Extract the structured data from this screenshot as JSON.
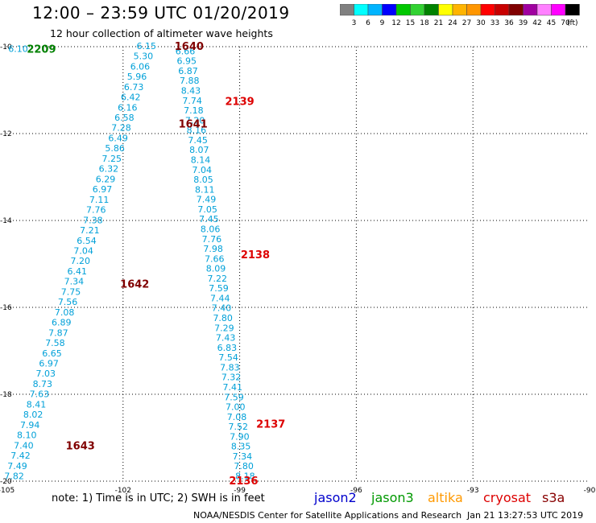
{
  "header": {
    "title": "12:00 – 23:59 UTC 01/20/2019",
    "subtitle": "12 hour collection of altimeter wave heights"
  },
  "colorbar": {
    "labels": [
      "3",
      "6",
      "9",
      "12",
      "15",
      "18",
      "21",
      "24",
      "27",
      "30",
      "33",
      "36",
      "39",
      "42",
      "45",
      "70"
    ],
    "colors": [
      "#808080",
      "#00ffff",
      "#00b4ff",
      "#0000ff",
      "#00c800",
      "#32d232",
      "#008200",
      "#ffff00",
      "#ffb400",
      "#ff9600",
      "#ff0000",
      "#c80000",
      "#800000",
      "#a000a0",
      "#ff80ff",
      "#ff00ff",
      "#000000"
    ],
    "unit": "(ft)"
  },
  "footer": {
    "note": "note:  1) Time is in UTC; 2) SWH is in feet",
    "credit": "NOAA/NESDIS Center for Satellite Applications and Research",
    "timestamp": "Jan 21 13:27:53 UTC 2019"
  },
  "satellites": [
    {
      "name": "jason2",
      "color": "#0000cc"
    },
    {
      "name": "jason3",
      "color": "#009900"
    },
    {
      "name": "altika",
      "color": "#ff9900"
    },
    {
      "name": "cryosat",
      "color": "#dd0000"
    },
    {
      "name": "s3a",
      "color": "#880000"
    }
  ],
  "chart_data": {
    "type": "scatter",
    "x_axis": {
      "range": [
        -105,
        -90
      ],
      "ticks": [
        "-105",
        "-102",
        "-99",
        "-96",
        "-93",
        "-90"
      ]
    },
    "y_axis": {
      "range": [
        -20,
        -10
      ],
      "ticks": [
        "-10",
        "-12",
        "-14",
        "-16",
        "-18",
        "-20"
      ]
    },
    "grid": true,
    "value_color": "#00a0d8",
    "tracks": [
      {
        "start": [
          -101.4,
          -9.98
        ],
        "end": [
          -104.8,
          -19.88
        ],
        "values": [
          "6.15",
          "5.30",
          "6.06",
          "5.96",
          "6.73",
          "6.42",
          "6.16",
          "6.58",
          "7.28",
          "6.49",
          "5.86",
          "7.25",
          "6.32",
          "6.29",
          "6.97",
          "7.11",
          "7.76",
          "7.38",
          "7.21",
          "6.54",
          "7.04",
          "7.20",
          "6.41",
          "7.34",
          "7.75",
          "7.56",
          "7.08",
          "6.89",
          "7.87",
          "7.58",
          "6.65",
          "6.97",
          "7.03",
          "8.73",
          "7.63",
          "8.41",
          "8.02",
          "7.94",
          "8.10",
          "7.40",
          "7.42",
          "7.49",
          "7.82"
        ]
      },
      {
        "start": [
          -100.4,
          -10.1
        ],
        "end": [
          -98.86,
          -19.88
        ],
        "values": [
          "6.66",
          "6.95",
          "6.87",
          "7.88",
          "8.43",
          "7.74",
          "7.18",
          "7.20",
          "8.16",
          "7.45",
          "8.07",
          "8.14",
          "7.04",
          "8.05",
          "8.11",
          "7.49",
          "7.05",
          "7.45",
          "8.06",
          "7.76",
          "7.98",
          "7.66",
          "8.09",
          "7.22",
          "7.59",
          "7.44",
          "7.40",
          "7.80",
          "7.29",
          "7.43",
          "6.83",
          "7.54",
          "7.83",
          "7.32",
          "7.41",
          "7.59",
          "7.00",
          "7.08",
          "7.52",
          "7.90",
          "8.35",
          "7.34",
          "7.80",
          "8.18"
        ]
      },
      {
        "start": [
          -104.7,
          -10.05
        ],
        "end": [
          -104.7,
          -10.05
        ],
        "values": [
          "6.10"
        ]
      }
    ],
    "pass_labels": [
      {
        "text": "2209",
        "lon": -104.1,
        "lat": -10.05,
        "color": "#008000"
      },
      {
        "text": "1640",
        "lon": -100.3,
        "lat": -9.98,
        "color": "#800000"
      },
      {
        "text": "2139",
        "lon": -99.0,
        "lat": -11.25,
        "color": "#dd0000"
      },
      {
        "text": "1641",
        "lon": -100.2,
        "lat": -11.77,
        "color": "#800000"
      },
      {
        "text": "2138",
        "lon": -98.6,
        "lat": -14.78,
        "color": "#dd0000"
      },
      {
        "text": "1642",
        "lon": -101.7,
        "lat": -15.45,
        "color": "#800000"
      },
      {
        "text": "2137",
        "lon": -98.2,
        "lat": -18.68,
        "color": "#dd0000"
      },
      {
        "text": "1643",
        "lon": -103.1,
        "lat": -19.18,
        "color": "#800000"
      },
      {
        "text": "2136",
        "lon": -98.9,
        "lat": -19.98,
        "color": "#dd0000"
      }
    ]
  }
}
